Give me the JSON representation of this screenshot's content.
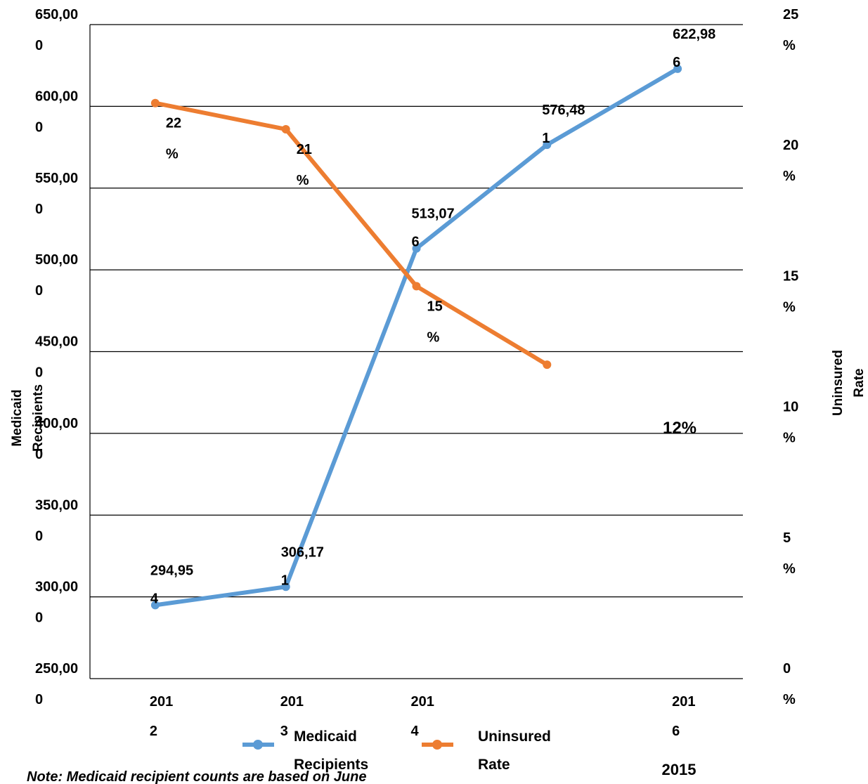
{
  "chart_data": {
    "type": "line",
    "y_axis_title": "Medicaid Recipients",
    "y2_axis_title": "Uninsured Rate",
    "categories": [
      "2012",
      "2013",
      "2014",
      null,
      "2016"
    ],
    "series": [
      {
        "name": "Medicaid Recipients",
        "color": "#5b9bd5",
        "values": [
          294954,
          306171,
          513076,
          576481,
          622986
        ],
        "value_labels": [
          "294,954",
          "306,171",
          "513,076",
          "576,481",
          "622,986"
        ]
      },
      {
        "name": "Uninsured Rate",
        "color": "#ed7d31",
        "axis": "y2",
        "values": [
          22,
          21,
          15,
          12,
          null
        ],
        "value_labels": [
          "22%",
          "21%",
          "15%",
          "12%",
          null
        ]
      }
    ],
    "ylim": [
      250000,
      650000
    ],
    "yticks": [
      {
        "value": 250000,
        "label": "250,000"
      },
      {
        "value": 300000,
        "label": "300,000"
      },
      {
        "value": 350000,
        "label": "350,000"
      },
      {
        "value": 400000,
        "label": "400,000"
      },
      {
        "value": 450000,
        "label": "450,000"
      },
      {
        "value": 500000,
        "label": "500,000"
      },
      {
        "value": 550000,
        "label": "550,000"
      },
      {
        "value": 600000,
        "label": "600,000"
      },
      {
        "value": 650000,
        "label": "650,000"
      }
    ],
    "y2lim": [
      0,
      25
    ],
    "y2ticks": [
      {
        "value": 0,
        "label": "0%"
      },
      {
        "value": 5,
        "label": "5%"
      },
      {
        "value": 10,
        "label": "10%"
      },
      {
        "value": 15,
        "label": "15%"
      },
      {
        "value": 20,
        "label": "20%"
      },
      {
        "value": 25,
        "label": "25%"
      }
    ],
    "grid": true,
    "legend": "bottom",
    "annotations": [
      "2015"
    ],
    "note": "Note: Medicaid recipient counts are based on June"
  }
}
